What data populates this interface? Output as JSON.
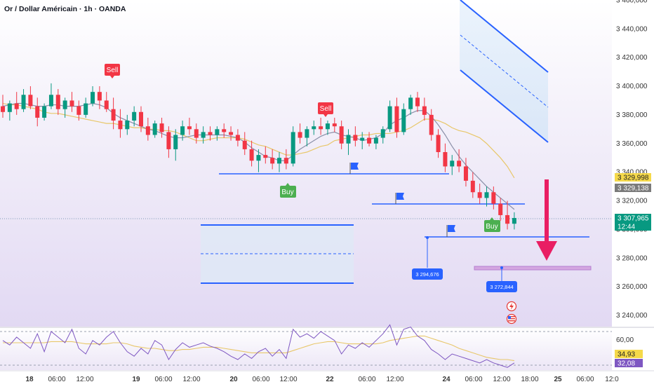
{
  "header": {
    "title": "Or / Dollar Américain · 1h · OANDA"
  },
  "chart_data": {
    "type": "candlestick",
    "title": "Or / Dollar Américain · 1h · OANDA",
    "price_axis": {
      "ylim": [
        3230,
        3460
      ],
      "ticks": [
        3460,
        3440,
        3420,
        3400,
        3380,
        3360,
        3340,
        3320,
        3300,
        3280,
        3260,
        3240
      ],
      "tick_labels": [
        "3 460,000",
        "3 440,000",
        "3 420,000",
        "3 400,000",
        "3 380,000",
        "3 360,000",
        "3 340,000",
        "3 320,000",
        "3 300,000",
        "3 280,000",
        "3 260,000",
        "3 240,000"
      ]
    },
    "time_axis": {
      "labels": [
        "18",
        "06:00",
        "12:00",
        "19",
        "06:00",
        "12:00",
        "20",
        "06:00",
        "12:00",
        "22",
        "06:00",
        "12:00",
        "24",
        "06:00",
        "12:00",
        "18:00",
        "25",
        "06:00",
        "12:0"
      ],
      "bold": [
        true,
        false,
        false,
        true,
        false,
        false,
        true,
        false,
        false,
        true,
        false,
        false,
        true,
        false,
        false,
        false,
        true,
        false,
        false
      ]
    },
    "candles": [
      [
        3386,
        3394,
        3378,
        3382
      ],
      [
        3382,
        3390,
        3376,
        3388
      ],
      [
        3388,
        3396,
        3380,
        3384
      ],
      [
        3384,
        3398,
        3382,
        3394
      ],
      [
        3394,
        3400,
        3384,
        3386
      ],
      [
        3386,
        3392,
        3372,
        3378
      ],
      [
        3378,
        3388,
        3376,
        3386
      ],
      [
        3386,
        3402,
        3384,
        3394
      ],
      [
        3394,
        3398,
        3380,
        3384
      ],
      [
        3384,
        3392,
        3378,
        3390
      ],
      [
        3390,
        3396,
        3382,
        3386
      ],
      [
        3386,
        3390,
        3376,
        3380
      ],
      [
        3380,
        3392,
        3378,
        3388
      ],
      [
        3388,
        3400,
        3386,
        3396
      ],
      [
        3396,
        3400,
        3384,
        3390
      ],
      [
        3390,
        3396,
        3382,
        3384
      ],
      [
        3384,
        3392,
        3370,
        3376
      ],
      [
        3376,
        3384,
        3364,
        3370
      ],
      [
        3370,
        3380,
        3366,
        3376
      ],
      [
        3376,
        3386,
        3372,
        3382
      ],
      [
        3382,
        3386,
        3368,
        3372
      ],
      [
        3372,
        3378,
        3362,
        3366
      ],
      [
        3366,
        3376,
        3364,
        3374
      ],
      [
        3374,
        3378,
        3364,
        3368
      ],
      [
        3368,
        3372,
        3350,
        3356
      ],
      [
        3356,
        3370,
        3348,
        3366
      ],
      [
        3366,
        3376,
        3362,
        3372
      ],
      [
        3372,
        3378,
        3366,
        3370
      ],
      [
        3370,
        3374,
        3360,
        3364
      ],
      [
        3364,
        3372,
        3360,
        3368
      ],
      [
        3368,
        3372,
        3362,
        3366
      ],
      [
        3366,
        3372,
        3362,
        3370
      ],
      [
        3370,
        3374,
        3364,
        3368
      ],
      [
        3368,
        3372,
        3362,
        3366
      ],
      [
        3366,
        3370,
        3358,
        3362
      ],
      [
        3362,
        3368,
        3352,
        3356
      ],
      [
        3356,
        3362,
        3344,
        3348
      ],
      [
        3348,
        3356,
        3340,
        3352
      ],
      [
        3352,
        3358,
        3346,
        3350
      ],
      [
        3350,
        3356,
        3342,
        3346
      ],
      [
        3346,
        3354,
        3340,
        3350
      ],
      [
        3350,
        3356,
        3342,
        3346
      ],
      [
        3346,
        3372,
        3344,
        3368
      ],
      [
        3368,
        3374,
        3360,
        3364
      ],
      [
        3364,
        3372,
        3358,
        3370
      ],
      [
        3370,
        3376,
        3366,
        3372
      ],
      [
        3372,
        3378,
        3366,
        3370
      ],
      [
        3370,
        3376,
        3366,
        3374
      ],
      [
        3374,
        3378,
        3368,
        3372
      ],
      [
        3372,
        3376,
        3356,
        3360
      ],
      [
        3360,
        3370,
        3352,
        3366
      ],
      [
        3366,
        3372,
        3358,
        3362
      ],
      [
        3362,
        3368,
        3356,
        3364
      ],
      [
        3364,
        3368,
        3358,
        3360
      ],
      [
        3360,
        3366,
        3356,
        3364
      ],
      [
        3364,
        3372,
        3360,
        3370
      ],
      [
        3370,
        3390,
        3368,
        3386
      ],
      [
        3386,
        3392,
        3364,
        3368
      ],
      [
        3368,
        3388,
        3366,
        3384
      ],
      [
        3384,
        3394,
        3380,
        3392
      ],
      [
        3392,
        3396,
        3382,
        3386
      ],
      [
        3386,
        3392,
        3376,
        3380
      ],
      [
        3380,
        3384,
        3362,
        3366
      ],
      [
        3366,
        3370,
        3350,
        3354
      ],
      [
        3354,
        3360,
        3340,
        3344
      ],
      [
        3344,
        3352,
        3338,
        3348
      ],
      [
        3348,
        3356,
        3340,
        3344
      ],
      [
        3344,
        3350,
        3330,
        3334
      ],
      [
        3334,
        3340,
        3322,
        3326
      ],
      [
        3326,
        3332,
        3318,
        3322
      ],
      [
        3322,
        3330,
        3316,
        3326
      ],
      [
        3326,
        3330,
        3314,
        3318
      ],
      [
        3318,
        3322,
        3306,
        3310
      ],
      [
        3310,
        3320,
        3300,
        3304
      ],
      [
        3304,
        3312,
        3300,
        3308
      ]
    ],
    "moving_averages": [
      {
        "color": "#e8c76a",
        "values": [
          3388,
          3387,
          3387,
          3386,
          3385,
          3384,
          3382,
          3381,
          3381,
          3380,
          3379,
          3378,
          3377,
          3376,
          3375,
          3374,
          3374,
          3373,
          3372,
          3371,
          3371,
          3370,
          3370,
          3369,
          3369,
          3368,
          3366,
          3364,
          3362,
          3362,
          3363,
          3364,
          3364,
          3364,
          3364,
          3363,
          3361,
          3359,
          3358,
          3356,
          3354,
          3352,
          3352,
          3353,
          3354,
          3356,
          3358,
          3359,
          3362,
          3363,
          3364,
          3365,
          3366,
          3366,
          3367,
          3367,
          3367,
          3368,
          3369,
          3371,
          3374,
          3377,
          3377,
          3376,
          3374,
          3371,
          3369,
          3368,
          3366,
          3364,
          3360,
          3355,
          3350,
          3344,
          3336
        ]
      },
      {
        "color": "#8a8fa8",
        "values": [
          3386,
          3387,
          3388,
          3388,
          3387,
          3386,
          3386,
          3387,
          3387,
          3386,
          3386,
          3386,
          3387,
          3388,
          3387,
          3385,
          3381,
          3378,
          3376,
          3374,
          3372,
          3370,
          3369,
          3367,
          3365,
          3364,
          3364,
          3365,
          3366,
          3366,
          3366,
          3366,
          3366,
          3365,
          3364,
          3361,
          3357,
          3354,
          3351,
          3350,
          3348,
          3348,
          3352,
          3356,
          3359,
          3362,
          3365,
          3367,
          3368,
          3366,
          3365,
          3364,
          3362,
          3363,
          3364,
          3367,
          3373,
          3376,
          3378,
          3381,
          3383,
          3383,
          3379,
          3373,
          3366,
          3358,
          3351,
          3345,
          3340,
          3335,
          3330,
          3326,
          3322,
          3318,
          3314
        ]
      }
    ],
    "annotations": {
      "sell_labels": [
        "Sell",
        "Sell"
      ],
      "buy_labels": [
        "Buy",
        "Buy"
      ],
      "price_labels": [
        "3 294,676",
        "3 272,844"
      ]
    },
    "price_badges": [
      {
        "label": "3 329,998",
        "bg": "#f5d94a",
        "fg": "#222222"
      },
      {
        "label": "3 329,138",
        "bg": "#7a7a7a",
        "fg": "#ffffff"
      },
      {
        "label": "3 307,965",
        "bg": "#089981",
        "fg": "#ffffff"
      },
      {
        "label": "12:44",
        "bg": "#089981",
        "fg": "#ffffff"
      }
    ],
    "oscillator": {
      "ticks": [
        "60,00"
      ],
      "badges": [
        {
          "label": "34,93",
          "bg": "#f5d94a",
          "fg": "#222222"
        },
        {
          "label": "32,08",
          "bg": "#7e57c2",
          "fg": "#ffffff"
        }
      ],
      "rsi": [
        52,
        48,
        55,
        50,
        45,
        58,
        42,
        60,
        55,
        50,
        62,
        45,
        40,
        52,
        48,
        55,
        60,
        50,
        42,
        38,
        45,
        40,
        52,
        48,
        35,
        44,
        50,
        46,
        48,
        50,
        47,
        45,
        42,
        38,
        35,
        40,
        36,
        42,
        45,
        38,
        44,
        36,
        62,
        55,
        58,
        54,
        60,
        56,
        52,
        40,
        48,
        45,
        50,
        46,
        52,
        58,
        66,
        48,
        62,
        64,
        56,
        52,
        44,
        40,
        35,
        40,
        38,
        36,
        34,
        32,
        35,
        32,
        30,
        28,
        32
      ],
      "signal": [
        50,
        50,
        50,
        50,
        50,
        50,
        50,
        51,
        51,
        51,
        51,
        50,
        49,
        49,
        49,
        49,
        50,
        50,
        49,
        47,
        46,
        45,
        45,
        44,
        43,
        43,
        44,
        44,
        45,
        46,
        46,
        46,
        45,
        44,
        43,
        42,
        41,
        41,
        41,
        41,
        41,
        41,
        43,
        45,
        47,
        49,
        50,
        51,
        51,
        50,
        49,
        49,
        49,
        49,
        49,
        50,
        52,
        53,
        54,
        55,
        56,
        56,
        54,
        52,
        50,
        48,
        45,
        43,
        41,
        39,
        37,
        36,
        35,
        35,
        34
      ]
    },
    "colors": {
      "up": "#089981",
      "down": "#f23645",
      "level": "#2962ff",
      "target_arrow": "#e91e63"
    }
  }
}
